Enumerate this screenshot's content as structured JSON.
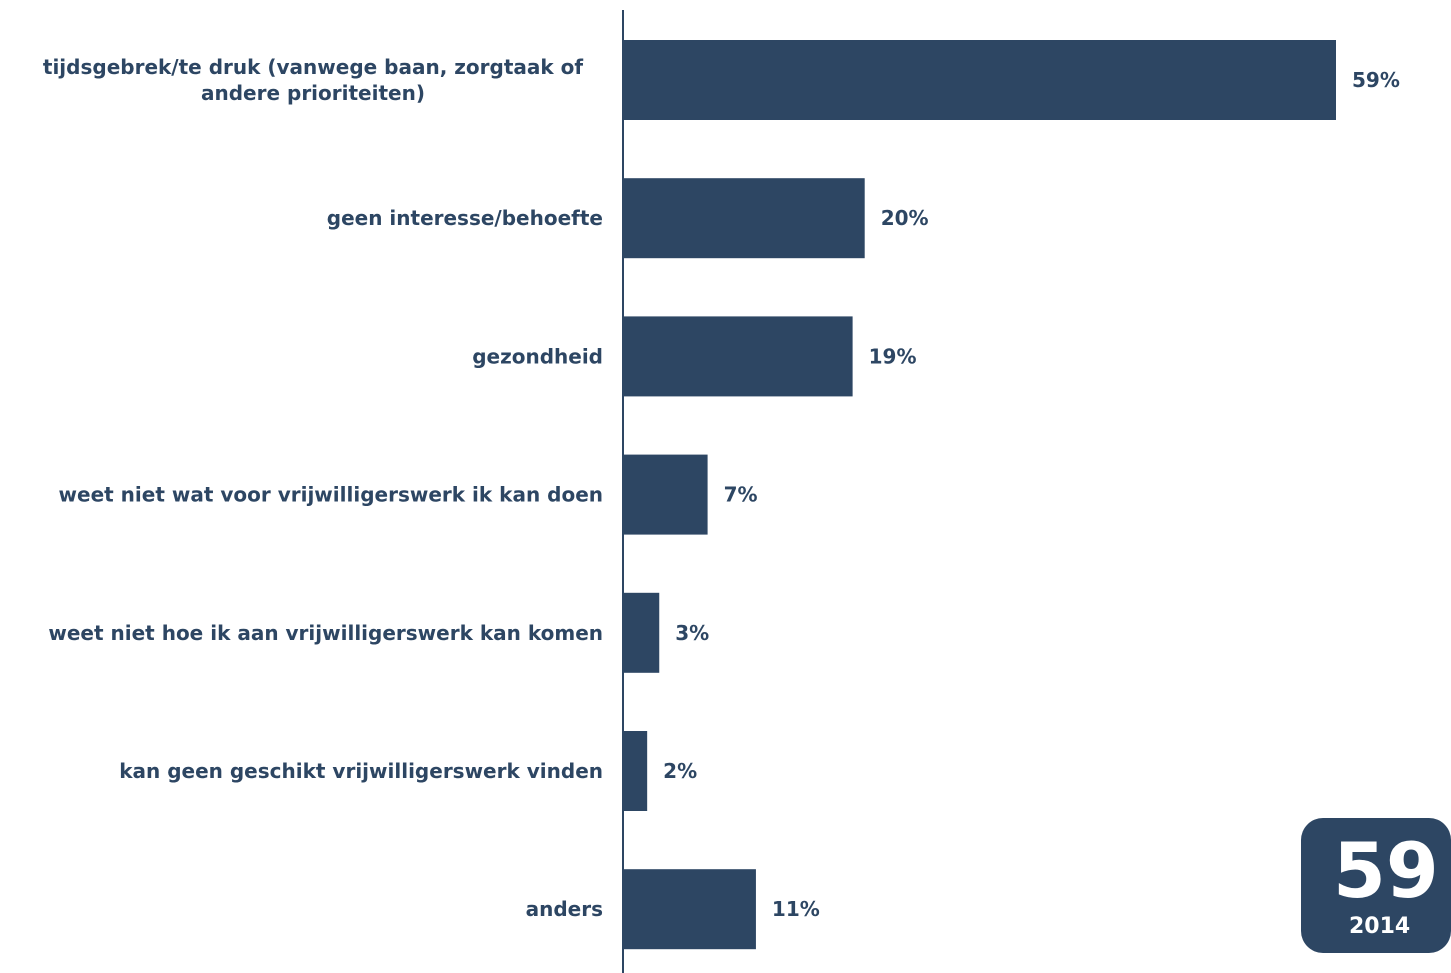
{
  "chart_data": {
    "type": "bar",
    "orientation": "horizontal",
    "categories": [
      [
        "tijdsgebrek/te druk (vanwege baan, zorgtaak of",
        "andere prioriteiten)"
      ],
      [
        "geen interesse/behoefte"
      ],
      [
        "gezondheid"
      ],
      [
        "weet niet wat voor vrijwilligerswerk ik kan doen"
      ],
      [
        "weet niet hoe ik aan vrijwilligerswerk kan komen"
      ],
      [
        "kan geen geschikt vrijwilligerswerk vinden"
      ],
      [
        "anders"
      ]
    ],
    "values": [
      59,
      20,
      19,
      7,
      3,
      2,
      11
    ],
    "value_labels": [
      "59%",
      "20%",
      "19%",
      "7%",
      "3%",
      "2%",
      "11%"
    ],
    "unit": "%",
    "xlim": [
      0,
      59
    ],
    "grid": false,
    "bar_color": "#2d4663"
  },
  "badge": {
    "number": "59",
    "year": "2014"
  }
}
